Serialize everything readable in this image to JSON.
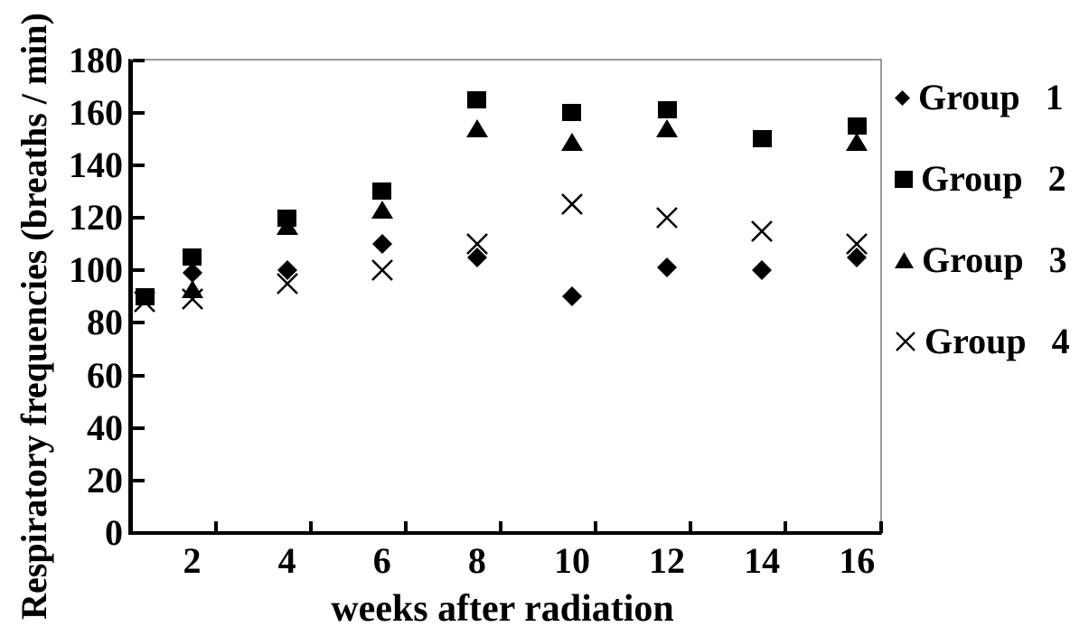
{
  "figure": {
    "background": "#ffffff",
    "marker_color": "#000000",
    "axis_color": "#000000",
    "frame_light_color": "#9a9a9a"
  },
  "chart_data": {
    "type": "scatter",
    "title": "",
    "xlabel": "weeks after radiation",
    "ylabel": "Respiratory frequencies (breaths / min)",
    "x_weeks": [
      1,
      2,
      4,
      6,
      8,
      10,
      12,
      14,
      16
    ],
    "x_tick_label_weeks": [
      2,
      4,
      6,
      8,
      10,
      12,
      14,
      16
    ],
    "x_tick_labels": [
      "2",
      "4",
      "6",
      "8",
      "10",
      "12",
      "14",
      "16"
    ],
    "y_ticks": [
      0,
      20,
      40,
      60,
      80,
      100,
      120,
      140,
      160,
      180
    ],
    "ylim": [
      0,
      180
    ],
    "grid": false,
    "legend_position": "right",
    "series": [
      {
        "name": "Group 1",
        "marker": "diamond",
        "values": [
          null,
          99,
          100,
          110,
          105,
          90,
          101,
          100,
          105
        ]
      },
      {
        "name": "Group 2",
        "marker": "square",
        "values": [
          90,
          105,
          120,
          130,
          165,
          160,
          161,
          150,
          155
        ]
      },
      {
        "name": "Group 3",
        "marker": "triangle",
        "values": [
          null,
          93,
          117,
          123,
          154,
          149,
          154,
          null,
          149
        ]
      },
      {
        "name": "Group 4",
        "marker": "x",
        "values": [
          88,
          89,
          95,
          100,
          110,
          125,
          120,
          115,
          110
        ]
      }
    ]
  },
  "legend": {
    "items": [
      {
        "marker": "diamond",
        "label": "Group",
        "number": "1"
      },
      {
        "marker": "square",
        "label": "Group",
        "number": "2"
      },
      {
        "marker": "triangle",
        "label": "Group",
        "number": "3"
      },
      {
        "marker": "x",
        "label": "Group",
        "number": "4"
      }
    ]
  }
}
